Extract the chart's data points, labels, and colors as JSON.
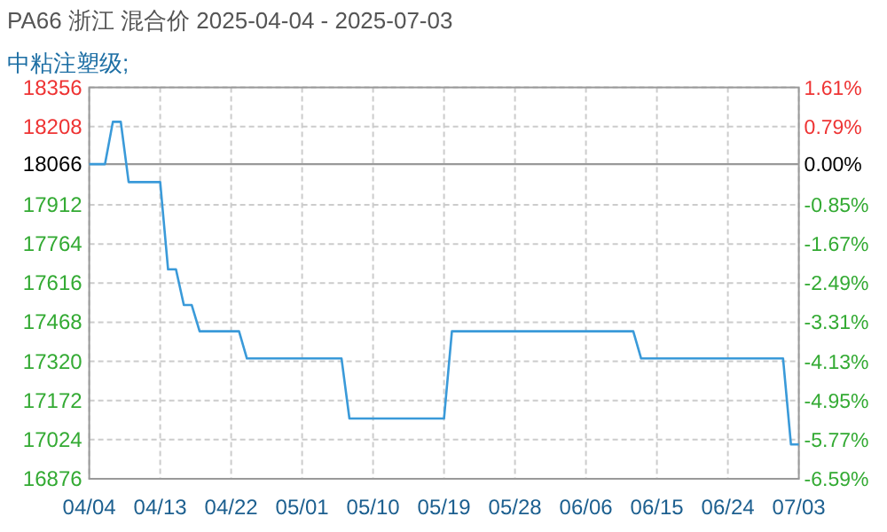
{
  "chart_data": {
    "type": "line",
    "title": "PA66 浙江 混合价 2025-04-04 - 2025-07-03",
    "subtitle": "中粘注塑级;",
    "series": [
      {
        "color": "#3a9ad9",
        "x": [
          "2025-04-04",
          "2025-04-06",
          "2025-04-07",
          "2025-04-08",
          "2025-04-09",
          "2025-04-13",
          "2025-04-14",
          "2025-04-15",
          "2025-04-16",
          "2025-04-17",
          "2025-04-18",
          "2025-04-23",
          "2025-04-24",
          "2025-05-06",
          "2025-05-07",
          "2025-05-19",
          "2025-05-20",
          "2025-06-12",
          "2025-06-13",
          "2025-07-01",
          "2025-07-02",
          "2025-07-03"
        ],
        "values": [
          18066,
          18066,
          18226,
          18226,
          17998,
          17998,
          17668,
          17668,
          17533,
          17533,
          17434,
          17434,
          17331,
          17331,
          17104,
          17104,
          17434,
          17434,
          17331,
          17331,
          17006,
          17006
        ]
      }
    ],
    "xlim": [
      "2025-04-04",
      "2025-07-03"
    ],
    "xticks": [
      {
        "value": "2025-04-04",
        "label": "04/04"
      },
      {
        "value": "2025-04-13",
        "label": "04/13"
      },
      {
        "value": "2025-04-22",
        "label": "04/22"
      },
      {
        "value": "2025-05-01",
        "label": "05/01"
      },
      {
        "value": "2025-05-10",
        "label": "05/10"
      },
      {
        "value": "2025-05-19",
        "label": "05/19"
      },
      {
        "value": "2025-05-28",
        "label": "05/28"
      },
      {
        "value": "2025-06-06",
        "label": "06/06"
      },
      {
        "value": "2025-06-15",
        "label": "06/15"
      },
      {
        "value": "2025-06-24",
        "label": "06/24"
      },
      {
        "value": "2025-07-03",
        "label": "07/03"
      }
    ],
    "ylim": [
      16876,
      18356
    ],
    "yticks": [
      16876,
      17024,
      17172,
      17320,
      17468,
      17616,
      17764,
      17912,
      18066,
      18208,
      18356
    ],
    "y2lim": [
      -6.59,
      1.61
    ],
    "y2ticks": [
      {
        "value": -6.59,
        "label": "-6.59%"
      },
      {
        "value": -5.77,
        "label": "-5.77%"
      },
      {
        "value": -4.95,
        "label": "-4.95%"
      },
      {
        "value": -4.13,
        "label": "-4.13%"
      },
      {
        "value": -3.31,
        "label": "-3.31%"
      },
      {
        "value": -2.49,
        "label": "-2.49%"
      },
      {
        "value": -1.67,
        "label": "-1.67%"
      },
      {
        "value": -0.85,
        "label": "-0.85%"
      },
      {
        "value": 0,
        "label": "0.00%"
      },
      {
        "value": 0.79,
        "label": "0.79%"
      },
      {
        "value": 1.61,
        "label": "1.61%"
      }
    ],
    "ref_lines": [
      {
        "axis": "y",
        "value": 18066,
        "color": "#999999",
        "line_style": "solid"
      }
    ],
    "grid": true,
    "marker": "none",
    "line_style": "solid"
  }
}
